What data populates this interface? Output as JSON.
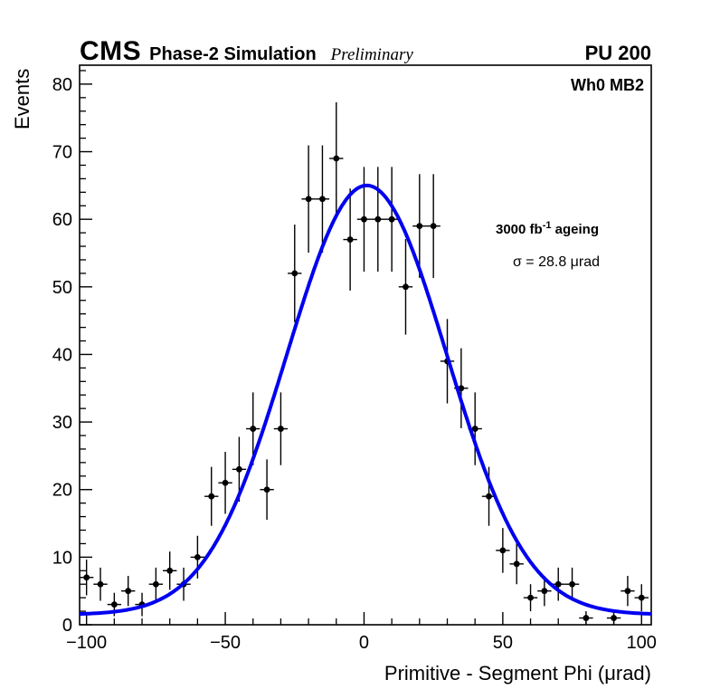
{
  "header": {
    "experiment": "CMS",
    "subtitle": "Phase-2 Simulation",
    "preliminary": "Preliminary",
    "pileup": "PU 200"
  },
  "annotations": {
    "chamber": "Wh0 MB2",
    "ageing_prefix": "3000 fb",
    "ageing_exponent": "-1",
    "ageing_suffix": " ageing",
    "sigma_text": "σ = 28.8 μrad"
  },
  "chart_data": {
    "type": "scatter",
    "title": "",
    "xlabel": "Primitive - Segment Phi (μrad)",
    "ylabel": "Events",
    "xlim": [
      -102.5,
      103.5
    ],
    "ylim": [
      0,
      82.8
    ],
    "grid": false,
    "legend_position": "none",
    "x_major_ticks": [
      -100,
      -50,
      0,
      50,
      100
    ],
    "x_minor_step": 10,
    "y_major_ticks": [
      0,
      10,
      20,
      30,
      40,
      50,
      60,
      70,
      80
    ],
    "y_minor_step": 2,
    "bin_half_width": 2.5,
    "y_error_mode": "sqrt",
    "marker_color": "#000000",
    "points": {
      "x": [
        -100,
        -95,
        -90,
        -85,
        -80,
        -75,
        -70,
        -65,
        -60,
        -55,
        -50,
        -45,
        -40,
        -35,
        -30,
        -25,
        -20,
        -15,
        -10,
        -5,
        0,
        5,
        10,
        15,
        20,
        25,
        30,
        35,
        40,
        45,
        50,
        55,
        60,
        65,
        70,
        75,
        80,
        90,
        95,
        100
      ],
      "y": [
        7,
        6,
        3,
        5,
        3,
        6,
        8,
        6,
        10,
        19,
        21,
        23,
        29,
        20,
        29,
        52,
        63,
        63,
        69,
        57,
        60,
        60,
        60,
        50,
        59,
        59,
        39,
        35,
        29,
        19,
        11,
        9,
        4,
        5,
        6,
        6,
        1,
        1,
        5,
        4
      ]
    },
    "fit": {
      "shape": "gaussian",
      "amplitude": 63.5,
      "mean": 1.0,
      "sigma": 28.8,
      "constant": 1.5,
      "color": "#0000f0",
      "line_width": 4
    }
  }
}
